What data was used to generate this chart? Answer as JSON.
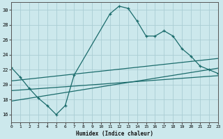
{
  "xlabel": "Humidex (Indice chaleur)",
  "bg_color": "#cce8ec",
  "grid_color": "#aacdd4",
  "line_color": "#1a6b6b",
  "x_min": 0,
  "x_max": 23,
  "y_min": 15,
  "y_max": 31,
  "yticks": [
    16,
    18,
    20,
    22,
    24,
    26,
    28,
    30
  ],
  "xticks": [
    0,
    1,
    2,
    3,
    4,
    5,
    6,
    7,
    8,
    9,
    10,
    11,
    12,
    13,
    14,
    15,
    16,
    17,
    18,
    19,
    20,
    21,
    22,
    23
  ],
  "line1_x": [
    0,
    1,
    2,
    3,
    4,
    5,
    6,
    7,
    11,
    12,
    13,
    14,
    15,
    16,
    17,
    18,
    19,
    20,
    21,
    22,
    23
  ],
  "line1_y": [
    22.3,
    21.0,
    19.5,
    18.2,
    17.2,
    16.0,
    17.2,
    21.3,
    29.5,
    30.5,
    30.2,
    28.5,
    26.5,
    26.5,
    27.2,
    26.5,
    24.8,
    23.8,
    22.5,
    22.0,
    21.5
  ],
  "line2_x": [
    0,
    23
  ],
  "line2_y": [
    20.5,
    23.5
  ],
  "line3_x": [
    0,
    23
  ],
  "line3_y": [
    19.2,
    21.2
  ],
  "line4_x": [
    0,
    23
  ],
  "line4_y": [
    17.8,
    22.2
  ]
}
